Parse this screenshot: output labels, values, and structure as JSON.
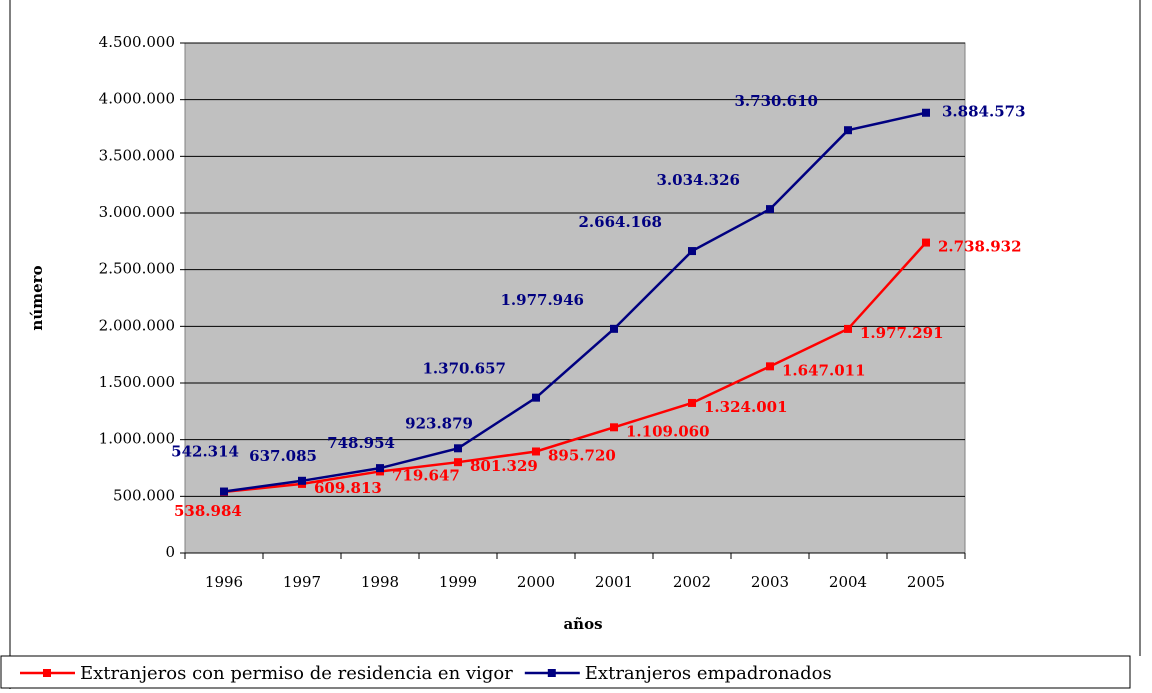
{
  "chart_data": {
    "type": "line",
    "x_label": "años",
    "y_label": "número",
    "categories": [
      "1996",
      "1997",
      "1998",
      "1999",
      "2000",
      "2001",
      "2002",
      "2003",
      "2004",
      "2005"
    ],
    "series": [
      {
        "name": "Extranjeros con permiso de residencia en vigor",
        "color": "#ff0000",
        "values": [
          538984,
          609813,
          719647,
          801329,
          895720,
          1109060,
          1324001,
          1647011,
          1977291,
          2738932
        ],
        "value_labels": [
          "538.984",
          "609.813",
          "719.647",
          "801.329",
          "895.720",
          "1.109.060",
          "1.324.001",
          "1.647.011",
          "1.977.291",
          "2.738.932"
        ]
      },
      {
        "name": "Extranjeros empadronados",
        "color": "#000080",
        "values": [
          542314,
          637085,
          748954,
          923879,
          1370657,
          1977946,
          2664168,
          3034326,
          3730610,
          3884573
        ],
        "value_labels": [
          "542.314",
          "637.085",
          "748.954",
          "923.879",
          "1.370.657",
          "1.977.946",
          "2.664.168",
          "3.034.326",
          "3.730.610",
          "3.884.573"
        ]
      }
    ],
    "ylim": [
      0,
      4500000
    ],
    "yticks": [
      0,
      {
        "value": 500000,
        "label": "500.000"
      },
      {
        "value": 1000000,
        "label": "1.000.000"
      },
      {
        "value": 1500000,
        "label": "1.500.000"
      },
      {
        "value": 2000000,
        "label": "2.000.000"
      },
      {
        "value": 2500000,
        "label": "2.500.000"
      },
      {
        "value": 3000000,
        "label": "3.000.000"
      },
      {
        "value": 3500000,
        "label": "3.500.000"
      },
      {
        "value": 4000000,
        "label": "4.000.000"
      },
      {
        "value": 4500000,
        "label": "4.500.000"
      }
    ],
    "grid": true,
    "plot_background": "#c0c0c0",
    "legend_position": "bottom"
  }
}
